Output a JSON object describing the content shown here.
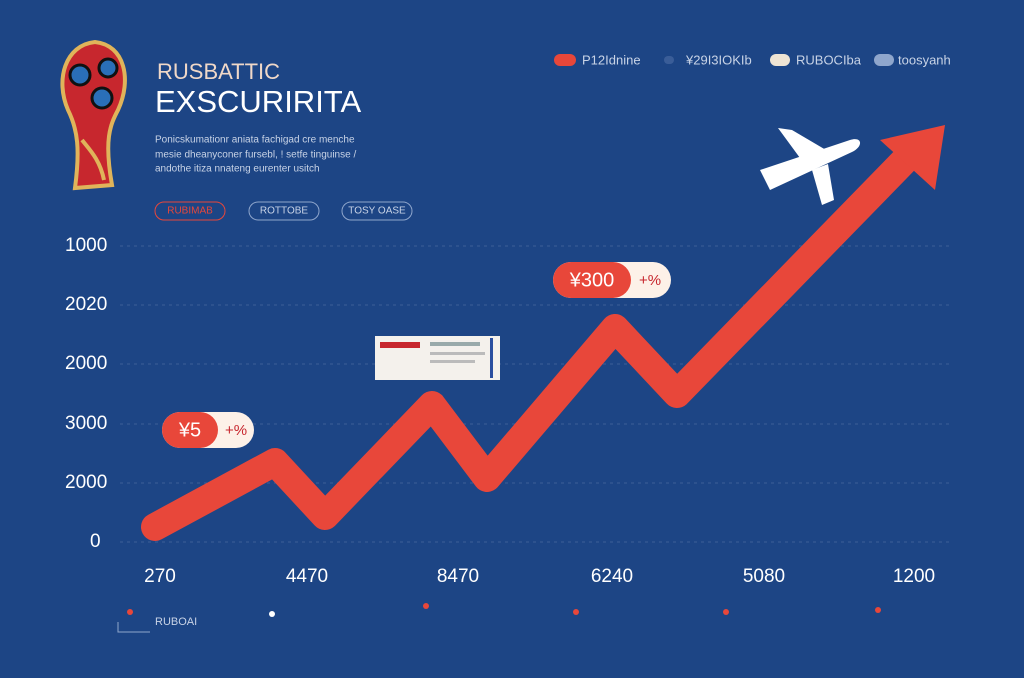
{
  "header": {
    "title_line1": "RUSBATTIC",
    "title_line2": "EXSCURIRITA",
    "description": [
      "Ponicskumationr aniata fachigad cre menche",
      "mesie dheanyconer fursebl, ! setfe tinguinse /",
      "andothe itiza nnateng eurenter usitch"
    ]
  },
  "buttons": [
    "RUBIMAB",
    "ROTTOBE",
    "TOSY OASE"
  ],
  "legend": [
    "P12Idnine",
    "¥29I3IOKIb",
    "RUBOCIba",
    "toosyanh"
  ],
  "y_axis_labels": [
    "1000",
    "2020",
    "2000",
    "3000",
    "2000",
    "0"
  ],
  "x_axis_labels": [
    "270",
    "4470",
    "8470",
    "6240",
    "5080",
    "1200"
  ],
  "callouts": [
    {
      "value": "¥5",
      "change": "+%"
    },
    {
      "value": "¥300",
      "change": "+%"
    }
  ],
  "footer": "RUBOAI"
}
